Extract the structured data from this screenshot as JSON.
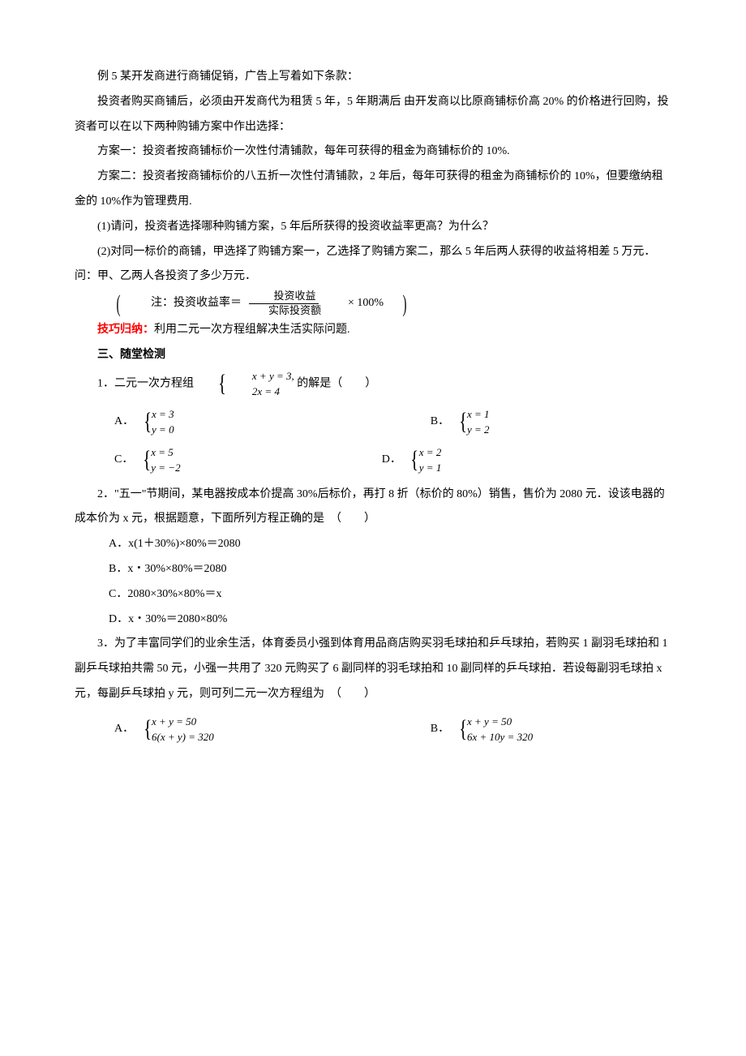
{
  "ex5_title": "例 5 某开发商进行商铺促销，广告上写着如下条款：",
  "ex5_p1": "投资者购买商铺后，必须由开发商代为租赁 5 年，5 年期满后 由开发商以比原商铺标价高 20% 的价格进行回购，投资者可以在以下两种购铺方案中作出选择：",
  "ex5_plan1": "方案一：投资者按商铺标价一次性付清铺款，每年可获得的租金为商铺标价的 10%.",
  "ex5_plan2": "方案二：投资者按商铺标价的八五折一次性付清铺款，2 年后，每年可获得的租金为商铺标价的 10%，但要缴纳租金的 10%作为管理费用.",
  "ex5_q1": "(1)请问，投资者选择哪种购铺方案，5 年后所获得的投资收益率更高？为什么？",
  "ex5_q2": "(2)对同一标价的商铺，甲选择了购铺方案一，乙选择了购铺方案二，那么 5 年后两人获得的收益将相差 5 万元．问：甲、乙两人各投资了多少万元．",
  "note_prefix": "注：投资收益率＝",
  "note_num": "投资收益",
  "note_den": "实际投资额",
  "note_suffix": "× 100%",
  "skill_label": "技巧归纳：",
  "skill_text": "利用二元一次方程组解决生活实际问题.",
  "section3": "三、随堂检测",
  "q1_text": "1．二元一次方程组",
  "q1_eq1": "x + y = 3,",
  "q1_eq2": "2x = 4",
  "q1_tail": "的解是（　　）",
  "q1_A1": "x = 3",
  "q1_A2": "y = 0",
  "q1_B1": "x = 1",
  "q1_B2": "y = 2",
  "q1_C1": "x = 5",
  "q1_C2": "y = −2",
  "q1_D1": "x = 2",
  "q1_D2": "y = 1",
  "label_A": "A．",
  "label_B": "B．",
  "label_C": "C．",
  "label_D": "D．",
  "q2_text": "2．\"五一\"节期间，某电器按成本价提高 30%后标价，再打 8 折（标价的 80%）销售，售价为 2080 元．设该电器的成本价为 x 元，根据题意，下面所列方程正确的是　（　　）",
  "q2_A": "A．x(1＋30%)×80%＝2080",
  "q2_B": "B．x・30%×80%＝2080",
  "q2_C": "C．2080×30%×80%＝x",
  "q2_D": "D．x・30%＝2080×80%",
  "q3_text": "3．为了丰富同学们的业余生活，体育委员小强到体育用品商店购买羽毛球拍和乒乓球拍，若购买 1 副羽毛球拍和 1 副乒乓球拍共需 50 元，小强一共用了 320 元购买了 6 副同样的羽毛球拍和 10 副同样的乒乓球拍．若设每副羽毛球拍 x 元，每副乒乓球拍 y 元，则可列二元一次方程组为　（　　）",
  "q3_A1": "x + y = 50",
  "q3_A2": "6(x + y) = 320",
  "q3_B1": "x + y = 50",
  "q3_B2": "6x + 10y = 320"
}
